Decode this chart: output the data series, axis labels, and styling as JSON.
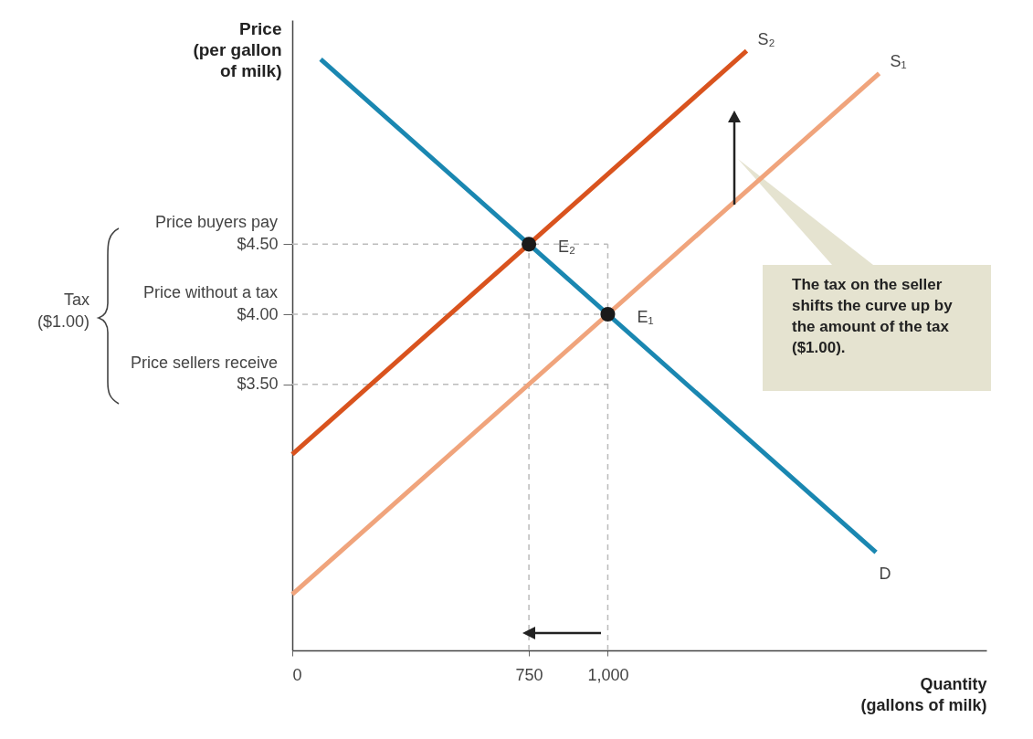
{
  "chart_data": {
    "type": "line",
    "xlabel": "Quantity (gallons of milk)",
    "ylabel": "Price (per gallon of milk)",
    "xlim": [
      0,
      2200
    ],
    "ylim": [
      1.6,
      6.1
    ],
    "xticks": [
      0,
      750,
      {
        "value": 1000,
        "label": "1,000"
      }
    ],
    "yticks": [
      {
        "value": 3.5,
        "label": "$3.50"
      },
      {
        "value": 4.0,
        "label": "$4.00"
      },
      {
        "value": 4.5,
        "label": "$4.50"
      }
    ],
    "series": [
      {
        "name": "D",
        "color": "#1a87b1",
        "x": [
          90,
          1850
        ],
        "values": [
          5.82,
          2.3
        ]
      },
      {
        "name": "S₂",
        "color": "#d9531e",
        "x": [
          0,
          1440
        ],
        "values": [
          3.0,
          5.88
        ]
      },
      {
        "name": "S₁",
        "color": "#f0a47c",
        "x": [
          0,
          1860
        ],
        "values": [
          2.0,
          5.72
        ]
      },
      {
        "name": "E₂",
        "type": "scatter",
        "marker": "circle",
        "color": "#1a1a1a",
        "x": [
          750
        ],
        "values": [
          4.5
        ]
      },
      {
        "name": "E₁",
        "type": "scatter",
        "marker": "circle",
        "color": "#1a1a1a",
        "x": [
          1000
        ],
        "values": [
          4.0
        ]
      }
    ],
    "ref_lines": [
      {
        "axis": "y",
        "value": 4.5,
        "label": "Price buyers pay",
        "color": "#bbbbbb",
        "line_style": "dashed"
      },
      {
        "axis": "y",
        "value": 4.0,
        "label": "Price without a tax",
        "color": "#bbbbbb",
        "line_style": "dashed"
      },
      {
        "axis": "y",
        "value": 3.5,
        "label": "Price sellers receive",
        "color": "#bbbbbb",
        "line_style": "dashed"
      },
      {
        "axis": "x",
        "value": 750,
        "color": "#bbbbbb",
        "line_style": "dashed"
      },
      {
        "axis": "x",
        "value": 1000,
        "color": "#bbbbbb",
        "line_style": "dashed"
      }
    ],
    "annotations": [
      "Tax ($1.00)",
      "The tax on the seller shifts the curve up by the amount of the tax ($1.00)."
    ],
    "grid": false
  }
}
